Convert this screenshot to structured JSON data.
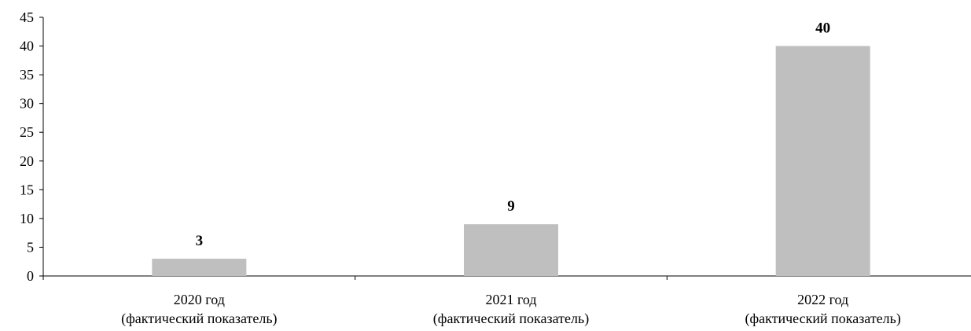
{
  "chart_data": {
    "type": "bar",
    "categories": [
      [
        "2020 год",
        "(фактический показатель)"
      ],
      [
        "2021 год",
        "(фактический показатель)"
      ],
      [
        "2022 год",
        "(фактический показатель)"
      ]
    ],
    "values": [
      3,
      9,
      40
    ],
    "data_labels": [
      "3",
      "9",
      "40"
    ],
    "title": "",
    "xlabel": "",
    "ylabel": "",
    "ylim": [
      0,
      45
    ],
    "yticks": [
      0,
      5,
      10,
      15,
      20,
      25,
      30,
      35,
      40,
      45
    ],
    "grid": false,
    "legend": "none",
    "colors": {
      "bar": "#bfbfbf",
      "axis": "#000000",
      "text": "#000000"
    }
  }
}
